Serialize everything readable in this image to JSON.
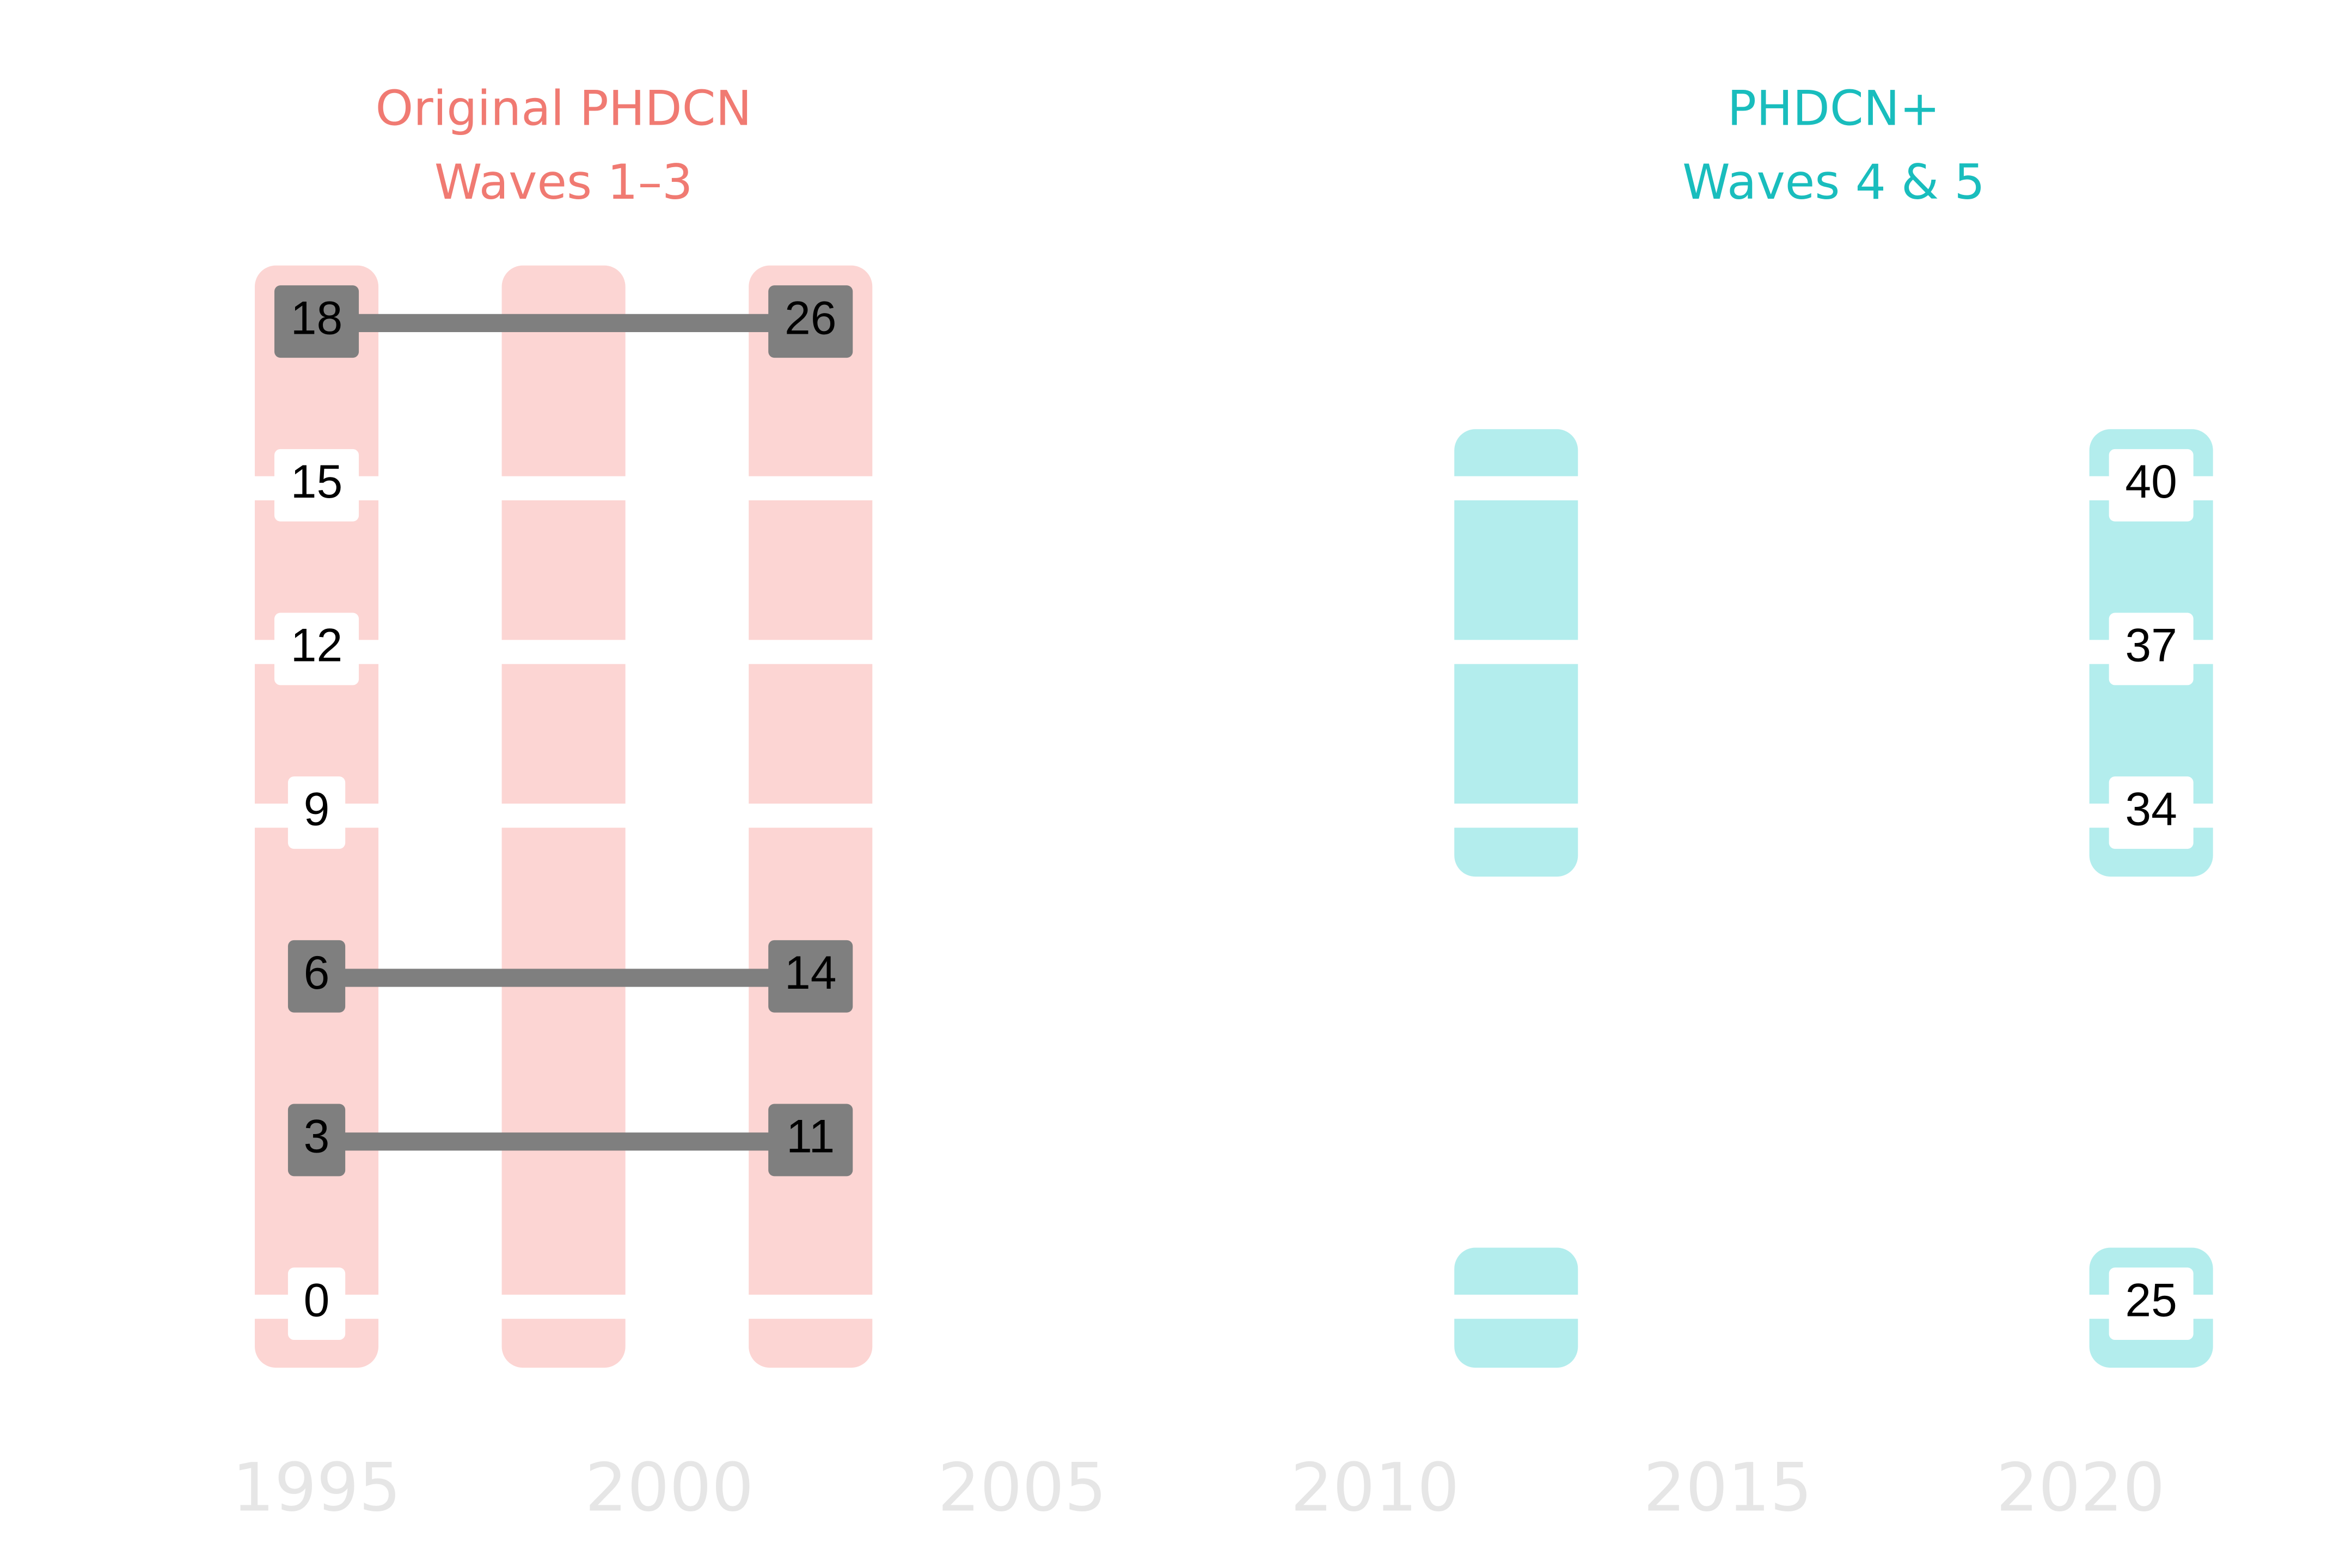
{
  "chart_data": {
    "type": "cohort",
    "groups": [
      {
        "title": [
          "Original PHDCN",
          "Waves 1–3"
        ],
        "color": "#f07a72",
        "band_color": "#fcd5d3",
        "waves": [
          1995,
          1998.5,
          2002
        ],
        "cohorts": [
          0,
          3,
          6,
          9,
          12,
          15,
          18
        ]
      },
      {
        "title": [
          "PHDCN+",
          "Waves 4 & 5"
        ],
        "color": "#19bdbd",
        "band_color": "#b3eded",
        "waves": [
          2012,
          2021
        ],
        "cohorts": [
          0,
          9,
          12,
          15
        ]
      }
    ],
    "followed_cohorts": [
      0,
      9,
      12,
      15
    ],
    "links": [
      {
        "cohort": 18,
        "from": 1995,
        "to": 2002,
        "values": [
          18,
          26
        ]
      },
      {
        "cohort": 6,
        "from": 1995,
        "to": 2002,
        "values": [
          6,
          14
        ]
      },
      {
        "cohort": 3,
        "from": 1995,
        "to": 2002,
        "values": [
          3,
          11
        ]
      }
    ],
    "labels": [
      {
        "x": 1995,
        "cohort": 15,
        "value": 15
      },
      {
        "x": 1995,
        "cohort": 12,
        "value": 12
      },
      {
        "x": 1995,
        "cohort": 9,
        "value": 9
      },
      {
        "x": 1995,
        "cohort": 0,
        "value": 0
      },
      {
        "x": 2021,
        "cohort": 15,
        "value": 40
      },
      {
        "x": 2021,
        "cohort": 12,
        "value": 37
      },
      {
        "x": 2021,
        "cohort": 9,
        "value": 34
      },
      {
        "x": 2021,
        "cohort": 0,
        "value": 25
      }
    ],
    "link_color": "#7f7f7f",
    "xlim": [
      1994,
      2022
    ],
    "xticks": [
      1995,
      2000,
      2005,
      2010,
      2015,
      2020
    ],
    "ylim": [
      -1.5,
      19.5
    ]
  }
}
